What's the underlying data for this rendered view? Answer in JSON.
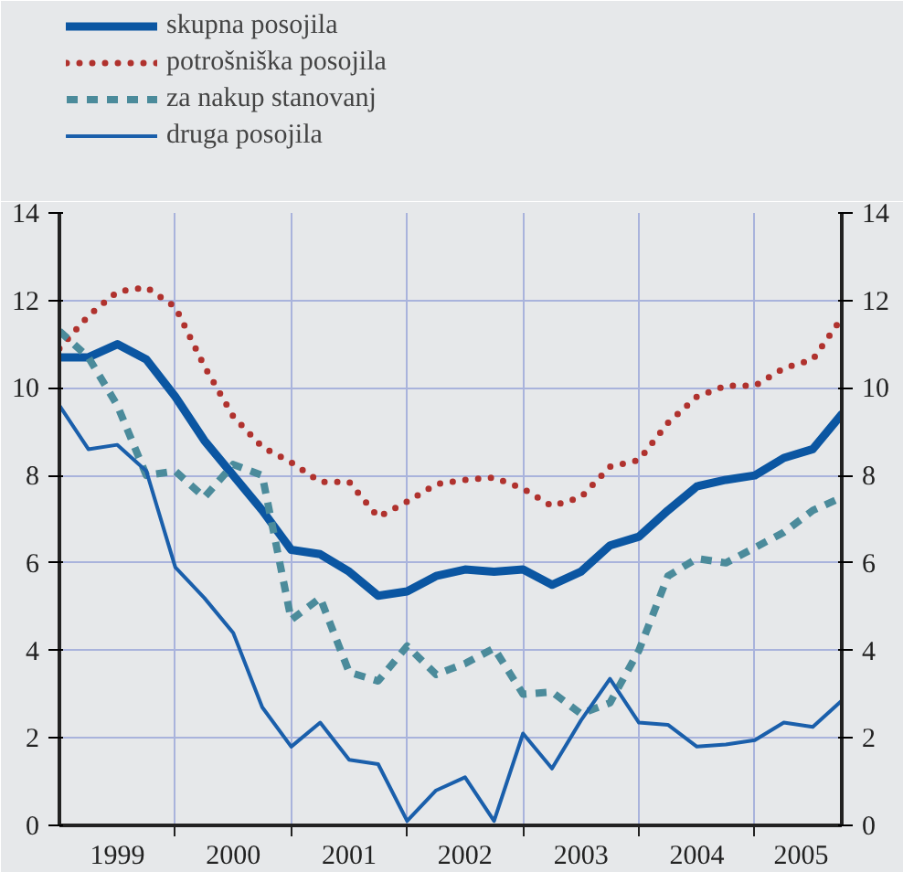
{
  "chart_data": {
    "type": "line",
    "x": [
      1999,
      1999.25,
      1999.5,
      1999.75,
      2000,
      2000.25,
      2000.5,
      2000.75,
      2001,
      2001.25,
      2001.5,
      2001.75,
      2002,
      2002.25,
      2002.5,
      2002.75,
      2003,
      2003.25,
      2003.5,
      2003.75,
      2004,
      2004.25,
      2004.5,
      2004.75,
      2005,
      2005.25,
      2005.5,
      2005.75
    ],
    "series": [
      {
        "name": "skupna posojila",
        "color": "#0b56a2",
        "line_style": "solid",
        "values": [
          10.7,
          10.7,
          11.0,
          10.65,
          9.8,
          8.8,
          8.0,
          7.2,
          6.3,
          6.2,
          5.8,
          5.25,
          5.35,
          5.7,
          5.85,
          5.8,
          5.85,
          5.5,
          5.8,
          6.4,
          6.6,
          7.2,
          7.75,
          7.9,
          8.0,
          8.4,
          8.6,
          9.4
        ]
      },
      {
        "name": "potrošniška posojila",
        "color": "#b0322e",
        "line_style": "dotted",
        "values": [
          10.9,
          11.65,
          12.2,
          12.3,
          11.85,
          10.5,
          9.35,
          8.65,
          8.3,
          7.85,
          7.85,
          7.05,
          7.4,
          7.8,
          7.9,
          7.95,
          7.7,
          7.3,
          7.5,
          8.2,
          8.35,
          9.2,
          9.8,
          10.05,
          10.05,
          10.45,
          10.65,
          11.6
        ]
      },
      {
        "name": "za nakup stanovanj",
        "color": "#4b8b9b",
        "line_style": "dashed",
        "values": [
          11.3,
          10.7,
          9.6,
          8.0,
          8.1,
          7.5,
          8.25,
          8.0,
          4.7,
          5.2,
          3.5,
          3.3,
          4.1,
          3.45,
          3.7,
          4.05,
          3.0,
          3.05,
          2.55,
          2.8,
          4.0,
          5.7,
          6.1,
          6.0,
          6.35,
          6.7,
          7.2,
          7.5
        ]
      },
      {
        "name": "druga posojila",
        "color": "#1a5fab",
        "line_style": "solid",
        "values": [
          9.6,
          8.6,
          8.7,
          8.1,
          5.9,
          5.2,
          4.4,
          2.7,
          1.8,
          2.35,
          1.5,
          1.4,
          0.1,
          0.8,
          1.1,
          0.1,
          2.1,
          1.3,
          2.4,
          3.35,
          2.35,
          2.3,
          1.8,
          1.85,
          1.95,
          2.35,
          2.25,
          2.85
        ]
      }
    ],
    "xlim": [
      1999,
      2005.75
    ],
    "xticks": [
      {
        "value": 1999.5,
        "label": "1999"
      },
      {
        "value": 2000,
        "label": null
      },
      {
        "value": 2000.5,
        "label": "2000"
      },
      {
        "value": 2001,
        "label": null
      },
      {
        "value": 2001.5,
        "label": "2001"
      },
      {
        "value": 2002,
        "label": null
      },
      {
        "value": 2002.5,
        "label": "2002"
      },
      {
        "value": 2003,
        "label": null
      },
      {
        "value": 2003.5,
        "label": "2003"
      },
      {
        "value": 2004,
        "label": null
      },
      {
        "value": 2004.5,
        "label": "2004"
      },
      {
        "value": 2005,
        "label": null
      },
      {
        "value": 2005.4,
        "label": "2005"
      }
    ],
    "ylim": [
      0,
      14
    ],
    "yticks": [
      0,
      2,
      4,
      6,
      8,
      10,
      12,
      14
    ],
    "y2lim": [
      0,
      14
    ],
    "y2ticks": [
      0,
      2,
      4,
      6,
      8,
      10,
      12,
      14
    ],
    "grid": true,
    "legend": "top left",
    "marker": "none"
  }
}
